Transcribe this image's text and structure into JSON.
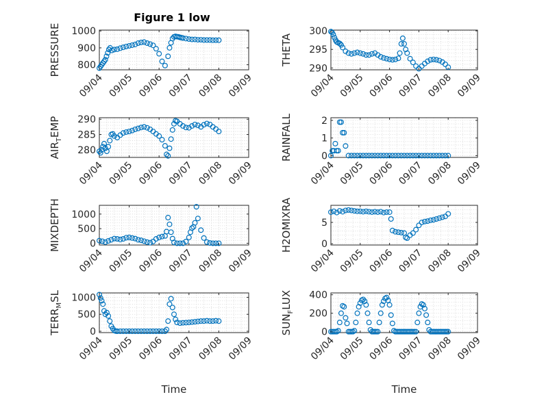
{
  "figure_title": "Figure 1 low",
  "colors": {
    "marker": "#0072bd",
    "axis": "#262626",
    "grid": "#d3d3d3",
    "background": "#ffffff"
  },
  "chart_data": [
    {
      "type": "scatter",
      "id": "pressure",
      "ylabel": "PRESSURE",
      "xlabel": "",
      "ylim": [
        770,
        1005
      ],
      "yticks": [
        800,
        900,
        1000
      ],
      "xlim": [
        "09/04",
        "09/09"
      ],
      "xticks": [
        "09/04",
        "09/05",
        "09/06",
        "09/07",
        "09/08",
        "09/09"
      ],
      "grid": true,
      "marker": "open circle",
      "x": [
        0,
        0.04,
        0.08,
        0.12,
        0.16,
        0.2,
        0.24,
        0.28,
        0.32,
        0.36,
        0.42,
        0.5,
        0.6,
        0.7,
        0.8,
        0.9,
        1.0,
        1.1,
        1.2,
        1.3,
        1.4,
        1.5,
        1.6,
        1.7,
        1.8,
        1.9,
        2.0,
        2.1,
        2.2,
        2.3,
        2.35,
        2.4,
        2.45,
        2.5,
        2.55,
        2.6,
        2.65,
        2.7,
        2.75,
        2.8,
        2.9,
        3.0,
        3.1,
        3.2,
        3.3,
        3.4,
        3.5,
        3.6,
        3.7,
        3.8,
        3.9,
        4.0
      ],
      "y": [
        780,
        790,
        800,
        810,
        820,
        830,
        850,
        870,
        890,
        900,
        885,
        890,
        892,
        898,
        903,
        908,
        912,
        916,
        920,
        928,
        932,
        934,
        928,
        922,
        915,
        895,
        865,
        820,
        795,
        850,
        900,
        930,
        955,
        965,
        968,
        966,
        965,
        962,
        960,
        958,
        955,
        952,
        950,
        950,
        948,
        948,
        946,
        946,
        946,
        945,
        945,
        945
      ]
    },
    {
      "type": "scatter",
      "id": "theta",
      "ylabel": "THETA",
      "xlabel": "",
      "ylim": [
        289.5,
        300.2
      ],
      "yticks": [
        290,
        295,
        300
      ],
      "xlim": [
        "09/04",
        "09/09"
      ],
      "xticks": [
        "09/04",
        "09/05",
        "09/06",
        "09/07",
        "09/08",
        "09/09"
      ],
      "grid": true,
      "marker": "open circle",
      "x": [
        0,
        0.04,
        0.08,
        0.12,
        0.16,
        0.2,
        0.25,
        0.3,
        0.35,
        0.4,
        0.5,
        0.6,
        0.7,
        0.8,
        0.9,
        1.0,
        1.1,
        1.2,
        1.3,
        1.4,
        1.5,
        1.6,
        1.7,
        1.8,
        1.9,
        2.0,
        2.1,
        2.2,
        2.3,
        2.35,
        2.4,
        2.45,
        2.5,
        2.55,
        2.6,
        2.7,
        2.8,
        2.9,
        3.0,
        3.1,
        3.2,
        3.3,
        3.4,
        3.5,
        3.6,
        3.7,
        3.8,
        3.9,
        4.0
      ],
      "y": [
        299.8,
        299.6,
        299,
        298.2,
        297.5,
        297,
        296.8,
        296.6,
        296.2,
        295.5,
        294.5,
        294,
        293.8,
        294,
        294.2,
        294,
        293.8,
        293.5,
        293.5,
        293.8,
        294,
        293.5,
        293,
        292.7,
        292.5,
        292.3,
        292.2,
        292.3,
        292.6,
        294,
        296.5,
        298,
        296.5,
        295,
        294,
        292.5,
        291.5,
        290.5,
        289.8,
        290.5,
        291.2,
        291.8,
        292.2,
        292.3,
        292.2,
        292,
        291.6,
        291,
        290.2
      ]
    },
    {
      "type": "scatter",
      "id": "air_temp",
      "ylabel": "AIRTEMP",
      "ylabel_parts": [
        "AIR",
        "T",
        "EMP"
      ],
      "xlabel": "",
      "ylim": [
        277.5,
        290.5
      ],
      "yticks": [
        280,
        285,
        290
      ],
      "xlim": [
        "09/04",
        "09/09"
      ],
      "xticks": [
        "09/04",
        "09/05",
        "09/06",
        "09/07",
        "09/08",
        "09/09"
      ],
      "grid": true,
      "marker": "open circle",
      "x": [
        0,
        0.04,
        0.08,
        0.12,
        0.16,
        0.2,
        0.25,
        0.3,
        0.35,
        0.4,
        0.45,
        0.5,
        0.6,
        0.7,
        0.8,
        0.9,
        1.0,
        1.1,
        1.2,
        1.3,
        1.4,
        1.5,
        1.6,
        1.7,
        1.8,
        1.9,
        2.0,
        2.1,
        2.2,
        2.25,
        2.3,
        2.35,
        2.4,
        2.45,
        2.5,
        2.55,
        2.6,
        2.7,
        2.8,
        2.9,
        3.0,
        3.1,
        3.2,
        3.3,
        3.4,
        3.5,
        3.6,
        3.7,
        3.8,
        3.9,
        4.0
      ],
      "y": [
        279.5,
        279,
        280,
        281,
        282,
        280.5,
        279.5,
        281,
        283,
        285,
        285.2,
        284.5,
        284,
        284.8,
        285.5,
        285.8,
        286,
        286.3,
        286.7,
        287,
        287.3,
        287.5,
        287.2,
        286.7,
        286,
        285.2,
        284.5,
        283.3,
        281.3,
        278.5,
        278,
        280.5,
        283.5,
        286.5,
        288.5,
        289.5,
        289.3,
        288.5,
        287.8,
        287.3,
        287.2,
        287.8,
        288.3,
        288,
        287.5,
        288.2,
        288.6,
        288.3,
        287.5,
        286.8,
        286
      ]
    },
    {
      "type": "scatter",
      "id": "rainfall",
      "ylabel": "RAINFALL",
      "xlabel": "",
      "ylim": [
        -0.1,
        2.15
      ],
      "yticks": [
        0,
        1,
        2
      ],
      "xlim": [
        "09/04",
        "09/09"
      ],
      "xticks": [
        "09/04",
        "09/05",
        "09/06",
        "09/07",
        "09/08",
        "09/09"
      ],
      "grid": true,
      "marker": "open circle",
      "x": [
        0,
        0.05,
        0.1,
        0.15,
        0.2,
        0.25,
        0.3,
        0.35,
        0.4,
        0.45,
        0.5,
        0.6,
        0.7,
        0.8,
        0.9,
        1.0,
        1.1,
        1.2,
        1.3,
        1.4,
        1.5,
        1.6,
        1.7,
        1.8,
        1.9,
        2.0,
        2.1,
        2.2,
        2.3,
        2.4,
        2.5,
        2.6,
        2.7,
        2.8,
        2.9,
        3.0,
        3.1,
        3.2,
        3.3,
        3.4,
        3.5,
        3.6,
        3.7,
        3.8,
        3.9,
        4.0
      ],
      "y": [
        0,
        0.28,
        0.28,
        0.68,
        0.28,
        0.28,
        1.9,
        1.9,
        1.3,
        1.3,
        0.55,
        0,
        0,
        0,
        0,
        0,
        0,
        0,
        0,
        0,
        0,
        0,
        0,
        0,
        0,
        0,
        0,
        0,
        0,
        0,
        0,
        0,
        0,
        0,
        0,
        0,
        0,
        0,
        0,
        0,
        0,
        0,
        0,
        0,
        0,
        0
      ]
    },
    {
      "type": "scatter",
      "id": "mixdepth",
      "ylabel": "MIXDEPTH",
      "xlabel": "",
      "ylim": [
        -60,
        1300
      ],
      "yticks": [
        0,
        500,
        1000
      ],
      "xlim": [
        "09/04",
        "09/09"
      ],
      "xticks": [
        "09/04",
        "09/05",
        "09/06",
        "09/07",
        "09/08",
        "09/09"
      ],
      "grid": true,
      "marker": "open circle",
      "x": [
        0,
        0.1,
        0.2,
        0.3,
        0.4,
        0.5,
        0.6,
        0.7,
        0.8,
        0.9,
        1.0,
        1.1,
        1.2,
        1.3,
        1.4,
        1.5,
        1.6,
        1.7,
        1.8,
        1.9,
        2.0,
        2.1,
        2.2,
        2.25,
        2.3,
        2.35,
        2.4,
        2.45,
        2.5,
        2.6,
        2.7,
        2.8,
        2.9,
        3.0,
        3.05,
        3.1,
        3.15,
        3.2,
        3.25,
        3.3,
        3.4,
        3.5,
        3.6,
        3.7,
        3.8,
        3.9,
        4.0
      ],
      "y": [
        90,
        70,
        40,
        80,
        120,
        160,
        150,
        130,
        150,
        190,
        200,
        180,
        160,
        120,
        100,
        70,
        40,
        20,
        60,
        150,
        200,
        230,
        250,
        400,
        880,
        650,
        380,
        160,
        30,
        0,
        0,
        0,
        60,
        200,
        380,
        520,
        560,
        700,
        1250,
        850,
        450,
        180,
        40,
        10,
        0,
        0,
        0
      ]
    },
    {
      "type": "scatter",
      "id": "h2omixra",
      "ylabel": "H2OMIXRA",
      "xlabel": "",
      "ylim": [
        -0.3,
        9
      ],
      "yticks": [
        0,
        5
      ],
      "xlim": [
        "09/04",
        "09/09"
      ],
      "xticks": [
        "09/04",
        "09/05",
        "09/06",
        "09/07",
        "09/08",
        "09/09"
      ],
      "grid": true,
      "marker": "open circle",
      "x": [
        0,
        0.1,
        0.2,
        0.3,
        0.4,
        0.5,
        0.6,
        0.7,
        0.8,
        0.9,
        1.0,
        1.1,
        1.2,
        1.3,
        1.4,
        1.5,
        1.6,
        1.7,
        1.8,
        1.9,
        2.0,
        2.05,
        2.1,
        2.2,
        2.3,
        2.4,
        2.5,
        2.55,
        2.6,
        2.7,
        2.8,
        2.9,
        3.0,
        3.1,
        3.2,
        3.3,
        3.4,
        3.5,
        3.6,
        3.7,
        3.8,
        3.9,
        4.0
      ],
      "y": [
        7.4,
        7.6,
        7.3,
        7.7,
        7.5,
        7.8,
        7.9,
        7.8,
        7.7,
        7.6,
        7.6,
        7.5,
        7.6,
        7.5,
        7.4,
        7.5,
        7.4,
        7.5,
        7.3,
        7.4,
        7.4,
        5.8,
        3.1,
        2.8,
        2.7,
        2.6,
        2.5,
        1.5,
        1.3,
        2.0,
        2.5,
        3.3,
        4.3,
        5.0,
        5.2,
        5.3,
        5.5,
        5.6,
        5.8,
        6.0,
        6.2,
        6.4,
        7.0
      ]
    },
    {
      "type": "scatter",
      "id": "terr_msl",
      "ylabel": "TERRMSL",
      "ylabel_parts": [
        "TERR",
        "M",
        "SL"
      ],
      "xlabel": "Time",
      "ylim": [
        -40,
        1130
      ],
      "yticks": [
        0,
        500,
        1000
      ],
      "xlim": [
        "09/04",
        "09/09"
      ],
      "xticks": [
        "09/04",
        "09/05",
        "09/06",
        "09/07",
        "09/08",
        "09/09"
      ],
      "grid": true,
      "marker": "open circle",
      "x": [
        0,
        0.04,
        0.08,
        0.12,
        0.16,
        0.2,
        0.25,
        0.3,
        0.35,
        0.4,
        0.45,
        0.5,
        0.55,
        0.6,
        0.7,
        0.8,
        0.9,
        1.0,
        1.1,
        1.2,
        1.3,
        1.4,
        1.5,
        1.6,
        1.7,
        1.8,
        1.9,
        2.0,
        2.1,
        2.2,
        2.25,
        2.3,
        2.35,
        2.4,
        2.45,
        2.5,
        2.55,
        2.6,
        2.7,
        2.8,
        2.9,
        3.0,
        3.1,
        3.2,
        3.3,
        3.4,
        3.5,
        3.6,
        3.7,
        3.8,
        3.9,
        4.0
      ],
      "y": [
        1080,
        980,
        900,
        800,
        600,
        500,
        550,
        450,
        300,
        150,
        80,
        20,
        5,
        0,
        0,
        0,
        0,
        0,
        0,
        0,
        0,
        0,
        0,
        0,
        0,
        0,
        0,
        0,
        0,
        0,
        50,
        300,
        800,
        960,
        700,
        500,
        350,
        260,
        240,
        250,
        255,
        260,
        270,
        280,
        290,
        300,
        300,
        310,
        300,
        300,
        310,
        300
      ]
    },
    {
      "type": "scatter",
      "id": "sun_flux",
      "ylabel": "SUNFLUX",
      "ylabel_parts": [
        "SUN",
        "F",
        "LUX"
      ],
      "xlabel": "Time",
      "ylim": [
        -10,
        420
      ],
      "yticks": [
        0,
        200,
        400
      ],
      "xlim": [
        "09/04",
        "09/09"
      ],
      "xticks": [
        "09/04",
        "09/05",
        "09/06",
        "09/07",
        "09/08",
        "09/09"
      ],
      "grid": true,
      "marker": "open circle",
      "x": [
        0,
        0.05,
        0.1,
        0.15,
        0.2,
        0.25,
        0.3,
        0.35,
        0.4,
        0.45,
        0.5,
        0.55,
        0.6,
        0.65,
        0.7,
        0.75,
        0.8,
        0.85,
        0.9,
        0.95,
        1.0,
        1.05,
        1.1,
        1.15,
        1.2,
        1.25,
        1.3,
        1.35,
        1.4,
        1.45,
        1.5,
        1.55,
        1.6,
        1.65,
        1.7,
        1.75,
        1.8,
        1.85,
        1.9,
        1.95,
        2.0,
        2.05,
        2.1,
        2.15,
        2.2,
        2.25,
        2.3,
        2.35,
        2.4,
        2.45,
        2.5,
        2.55,
        2.6,
        2.65,
        2.7,
        2.75,
        2.8,
        2.85,
        2.9,
        2.95,
        3.0,
        3.05,
        3.1,
        3.15,
        3.2,
        3.25,
        3.3,
        3.35,
        3.4,
        3.45,
        3.5,
        3.55,
        3.6,
        3.65,
        3.7,
        3.75,
        3.8,
        3.85,
        3.9,
        3.95,
        4.0
      ],
      "y": [
        0,
        0,
        0,
        0,
        0,
        10,
        100,
        200,
        280,
        270,
        150,
        90,
        0,
        0,
        0,
        0,
        10,
        100,
        200,
        270,
        310,
        340,
        350,
        330,
        290,
        200,
        100,
        20,
        0,
        0,
        0,
        0,
        0,
        100,
        200,
        290,
        330,
        360,
        370,
        340,
        290,
        180,
        90,
        10,
        0,
        0,
        0,
        0,
        0,
        0,
        0,
        0,
        0,
        0,
        0,
        0,
        0,
        0,
        0,
        100,
        200,
        270,
        300,
        290,
        250,
        180,
        100,
        20,
        0,
        0,
        0,
        0,
        0,
        0,
        0,
        0,
        0,
        0,
        0,
        0,
        0
      ]
    }
  ]
}
